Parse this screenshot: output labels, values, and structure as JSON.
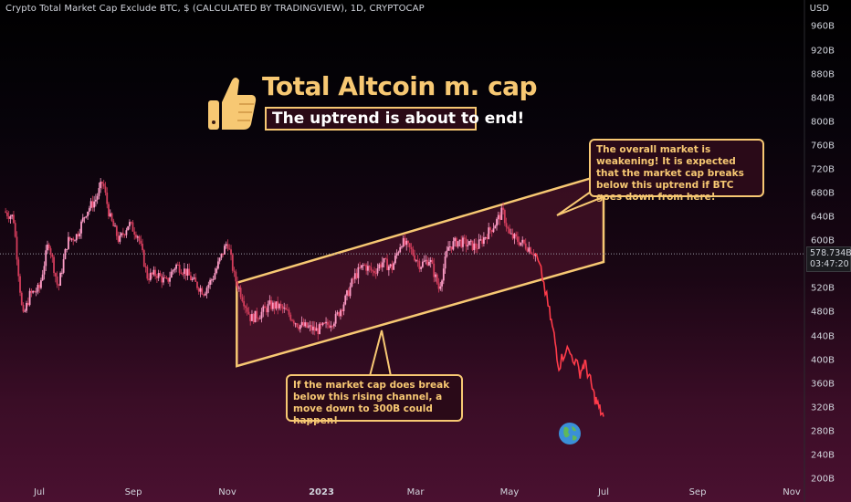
{
  "header": {
    "symbol_title": "Crypto Total Market Cap Exclude BTC, $ (CALCULATED BY TRADINGVIEW), 1D, CRYPTOCAP",
    "currency": "USD"
  },
  "price_tag": {
    "price": "578.734B",
    "countdown": "03:47:20"
  },
  "overlay": {
    "headline": "Total Altcoin m. cap",
    "subhead": "The uptrend is about to end!",
    "note_right": "The overall market is weakening! It is expected that the market cap breaks below this uptrend if BTC goes down from here!",
    "note_bottom": "If the market cap does break below this rising channel, a move down to 300B could happen!",
    "thumb_icon": "thumbs-up-icon",
    "globe_icon": "globe-icon"
  },
  "colors": {
    "up": "#ff9ec8",
    "down": "#d43d5c",
    "projection": "#ff3b4a",
    "annotation": "#f7c873",
    "channel_fill": "#5a1530"
  },
  "chart_data": {
    "type": "candlestick",
    "title": "Crypto Total Market Cap Exclude BTC, $ (CALCULATED BY TRADINGVIEW), 1D, CRYPTOCAP",
    "ylabel": "USD",
    "ylim": [
      200,
      980
    ],
    "y_ticks": [
      "960B",
      "920B",
      "880B",
      "840B",
      "800B",
      "760B",
      "720B",
      "680B",
      "640B",
      "600B",
      "560B",
      "520B",
      "480B",
      "440B",
      "400B",
      "360B",
      "320B",
      "280B",
      "240B",
      "200B"
    ],
    "y_tick_values": [
      960,
      920,
      880,
      840,
      800,
      760,
      720,
      680,
      640,
      600,
      560,
      520,
      480,
      440,
      400,
      360,
      320,
      280,
      240,
      200
    ],
    "x_ticks": [
      {
        "label": "Jul",
        "t": 0.0,
        "bold": false
      },
      {
        "label": "Sep",
        "t": 2.0,
        "bold": false
      },
      {
        "label": "Nov",
        "t": 4.0,
        "bold": false
      },
      {
        "label": "2023",
        "t": 6.0,
        "bold": true
      },
      {
        "label": "Mar",
        "t": 8.0,
        "bold": false
      },
      {
        "label": "May",
        "t": 10.0,
        "bold": false
      },
      {
        "label": "Jul",
        "t": 12.0,
        "bold": false
      },
      {
        "label": "Sep",
        "t": 14.0,
        "bold": false
      },
      {
        "label": "Nov",
        "t": 16.0,
        "bold": false
      }
    ],
    "x_units": "months since Jul 2022",
    "x_range": [
      -0.75,
      16.2
    ],
    "current_price": 578.734,
    "price_path": [
      [
        -0.75,
        650
      ],
      [
        -0.55,
        640
      ],
      [
        -0.35,
        470
      ],
      [
        -0.2,
        510
      ],
      [
        0.0,
        520
      ],
      [
        0.2,
        600
      ],
      [
        0.4,
        520
      ],
      [
        0.6,
        600
      ],
      [
        0.8,
        610
      ],
      [
        1.0,
        650
      ],
      [
        1.2,
        670
      ],
      [
        1.35,
        700
      ],
      [
        1.5,
        640
      ],
      [
        1.7,
        600
      ],
      [
        1.9,
        630
      ],
      [
        2.1,
        610
      ],
      [
        2.3,
        540
      ],
      [
        2.5,
        545
      ],
      [
        2.7,
        530
      ],
      [
        2.9,
        560
      ],
      [
        3.1,
        550
      ],
      [
        3.3,
        530
      ],
      [
        3.5,
        515
      ],
      [
        3.7,
        540
      ],
      [
        3.85,
        570
      ],
      [
        4.0,
        600
      ],
      [
        4.15,
        540
      ],
      [
        4.3,
        510
      ],
      [
        4.5,
        470
      ],
      [
        4.7,
        478
      ],
      [
        4.9,
        492
      ],
      [
        5.1,
        490
      ],
      [
        5.3,
        478
      ],
      [
        5.5,
        460
      ],
      [
        5.7,
        455
      ],
      [
        5.9,
        450
      ],
      [
        6.1,
        458
      ],
      [
        6.3,
        470
      ],
      [
        6.5,
        500
      ],
      [
        6.7,
        540
      ],
      [
        6.9,
        560
      ],
      [
        7.1,
        548
      ],
      [
        7.3,
        565
      ],
      [
        7.5,
        555
      ],
      [
        7.7,
        600
      ],
      [
        7.9,
        585
      ],
      [
        8.1,
        560
      ],
      [
        8.3,
        570
      ],
      [
        8.5,
        520
      ],
      [
        8.7,
        590
      ],
      [
        8.9,
        600
      ],
      [
        9.1,
        595
      ],
      [
        9.3,
        590
      ],
      [
        9.5,
        610
      ],
      [
        9.7,
        630
      ],
      [
        9.85,
        650
      ],
      [
        10.0,
        610
      ],
      [
        10.2,
        600
      ],
      [
        10.4,
        590
      ],
      [
        10.55,
        578
      ]
    ],
    "projection_path": [
      [
        10.55,
        578
      ],
      [
        10.7,
        540
      ],
      [
        10.85,
        480
      ],
      [
        10.95,
        440
      ],
      [
        11.05,
        390
      ],
      [
        11.2,
        420
      ],
      [
        11.35,
        405
      ],
      [
        11.5,
        380
      ],
      [
        11.6,
        395
      ],
      [
        11.7,
        370
      ],
      [
        11.8,
        340
      ],
      [
        11.9,
        320
      ],
      [
        12.0,
        305
      ]
    ],
    "channel": {
      "upper": [
        [
          4.2,
          530
        ],
        [
          12.0,
          712
        ]
      ],
      "lower": [
        [
          4.2,
          390
        ],
        [
          12.0,
          565
        ]
      ]
    }
  }
}
